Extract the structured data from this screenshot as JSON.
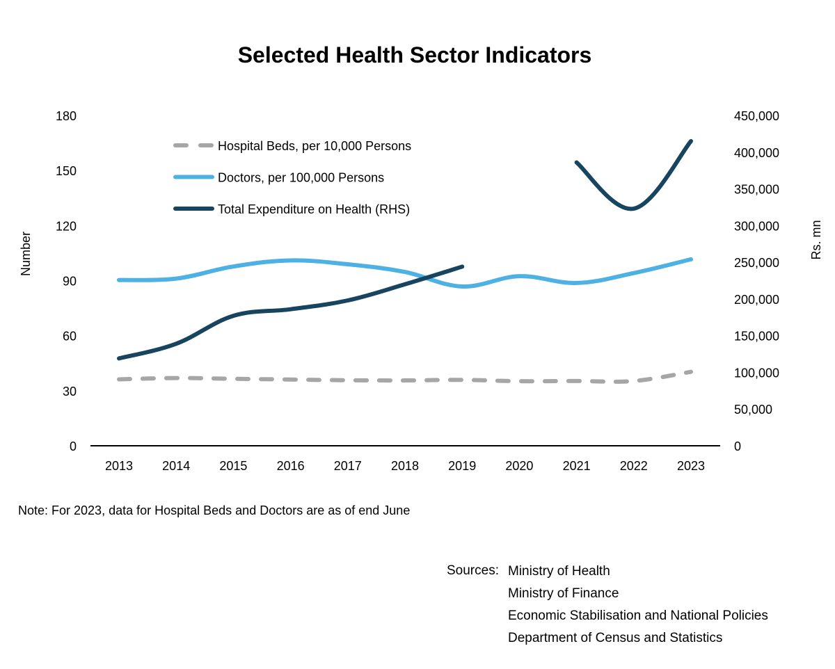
{
  "chart_data": {
    "type": "line",
    "title": "Selected Health Sector Indicators",
    "ylabel_left": "Number",
    "ylabel_right": "Rs. mn",
    "x": [
      "2013",
      "2014",
      "2015",
      "2016",
      "2017",
      "2018",
      "2019",
      "2020",
      "2021",
      "2022",
      "2023"
    ],
    "ylim_left": [
      0,
      180
    ],
    "yticks_left": [
      "0",
      "30",
      "60",
      "90",
      "120",
      "150",
      "180"
    ],
    "ylim_right": [
      0,
      450000
    ],
    "yticks_right": [
      "0",
      "50,000",
      "100,000",
      "150,000",
      "200,000",
      "250,000",
      "300,000",
      "350,000",
      "400,000",
      "450,000"
    ],
    "legend_position": "top-left",
    "series": [
      {
        "name": "Hospital Beds, per 10,000 Persons",
        "axis": "left",
        "style": "dashed",
        "color": "#a6a6a6",
        "values": [
          36.2,
          36.9,
          36.5,
          36.1,
          35.7,
          35.6,
          35.9,
          35.2,
          35.3,
          35.3,
          40.3
        ]
      },
      {
        "name": "Doctors, per 100,000 Persons",
        "axis": "left",
        "style": "solid",
        "color": "#4eb1e3",
        "values": [
          90.3,
          91.1,
          97.7,
          101.0,
          98.9,
          94.7,
          86.8,
          92.4,
          88.7,
          94.1,
          101.6
        ]
      },
      {
        "name": "Total Expenditure on Health (RHS)",
        "axis": "right",
        "style": "solid",
        "color": "#17445e",
        "segments": [
          {
            "x": [
              "2013",
              "2014",
              "2015",
              "2016",
              "2017",
              "2018",
              "2019"
            ],
            "values": [
              119000,
              139000,
              177000,
              186000,
              198000,
              220000,
              244000
            ]
          },
          {
            "x": [
              "2021",
              "2022",
              "2023"
            ],
            "values": [
              386000,
              323000,
              415000
            ]
          }
        ]
      }
    ]
  },
  "note": "Note: For 2023, data for Hospital Beds and Doctors are as of end June",
  "sources": {
    "label": "Sources:",
    "items": [
      "Ministry of Health",
      "Ministry of Finance",
      "Economic Stabilisation and National Policies",
      "Department of Census and Statistics"
    ]
  }
}
